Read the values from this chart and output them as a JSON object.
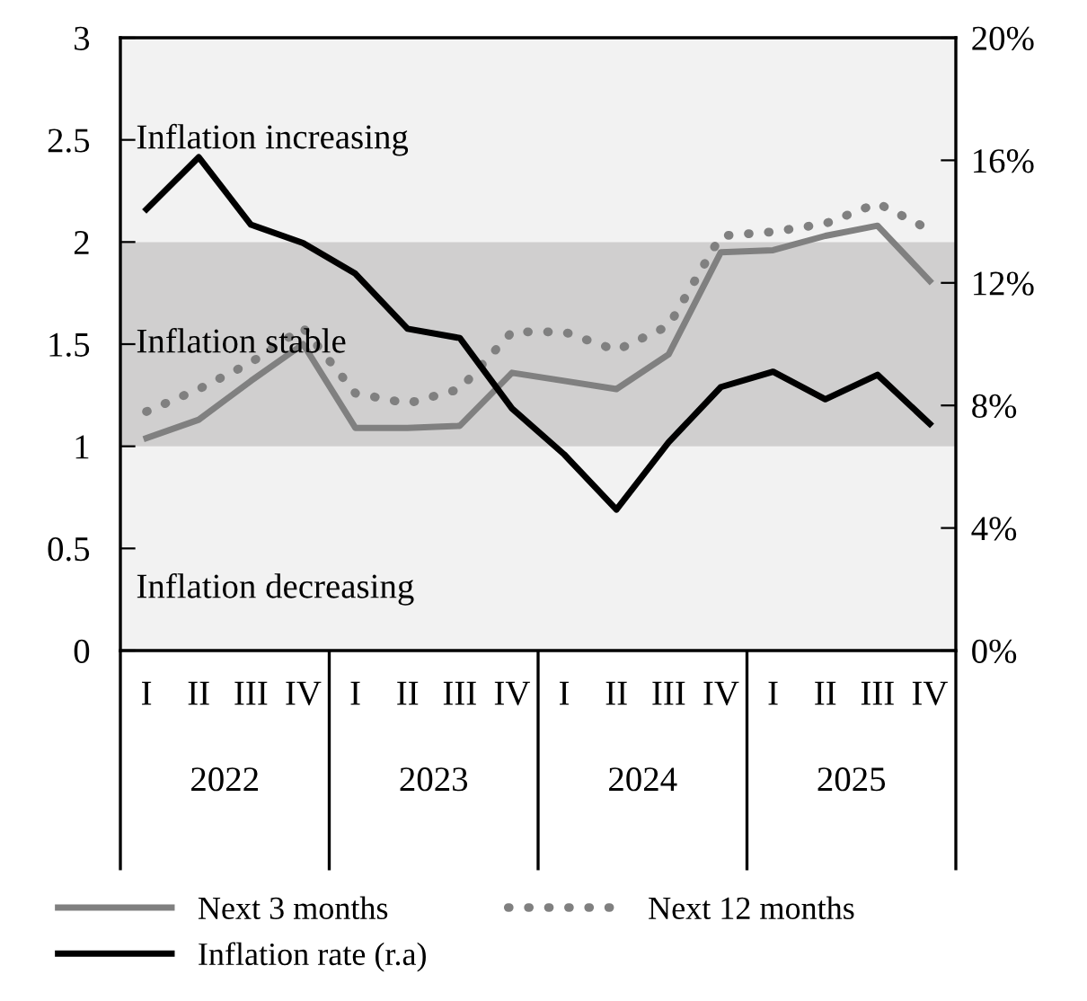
{
  "chart_data": {
    "type": "line",
    "categories": [
      "I",
      "II",
      "III",
      "IV",
      "I",
      "II",
      "III",
      "IV",
      "I",
      "II",
      "III",
      "IV",
      "I",
      "II",
      "III",
      "IV"
    ],
    "series": [
      {
        "name": "Next 3 months",
        "color": "#808080",
        "line_style": "solid",
        "values": [
          1.04,
          1.13,
          1.32,
          1.5,
          1.09,
          1.09,
          1.1,
          1.36,
          1.32,
          1.28,
          1.45,
          1.95,
          1.96,
          2.03,
          2.08,
          1.81
        ]
      },
      {
        "name": "Next 12 months",
        "color": "#808080",
        "line_style": "dotted",
        "values": [
          1.17,
          1.28,
          1.41,
          1.58,
          1.26,
          1.21,
          1.28,
          1.56,
          1.56,
          1.47,
          1.59,
          2.03,
          2.05,
          2.09,
          2.19,
          2.06
        ]
      },
      {
        "name": "Inflation rate (r.a)",
        "color": "#000000",
        "line_style": "solid",
        "axis": "y2",
        "values": [
          14.4,
          16.1,
          13.9,
          13.3,
          12.3,
          10.5,
          10.2,
          7.9,
          6.4,
          4.6,
          6.8,
          8.6,
          9.1,
          8.2,
          9.0,
          7.4
        ]
      }
    ],
    "ylim": [
      0,
      3
    ],
    "yticks": [
      0,
      0.5,
      1,
      1.5,
      2,
      2.5,
      3
    ],
    "y2lim": [
      0,
      20
    ],
    "y2ticks": [
      {
        "value": 0,
        "label": "0%"
      },
      {
        "value": 4,
        "label": "4%"
      },
      {
        "value": 8,
        "label": "8%"
      },
      {
        "value": 12,
        "label": "12%"
      },
      {
        "value": 16,
        "label": "16%"
      },
      {
        "value": 20,
        "label": "20%"
      }
    ],
    "bands": [
      {
        "axis": "y",
        "from": 0,
        "to": 1,
        "label": "Inflation decreasing",
        "color": "#f2f2f2"
      },
      {
        "axis": "y",
        "from": 1,
        "to": 2,
        "label": "Inflation stable",
        "color": "#d0cfcf"
      },
      {
        "axis": "y",
        "from": 2,
        "to": 3,
        "label": "Inflation increasing",
        "color": "#f2f2f2"
      }
    ],
    "annotations": [
      "2022",
      "2023",
      "2024",
      "2025"
    ],
    "legend": "bottom",
    "grid": false,
    "marker": "none"
  }
}
